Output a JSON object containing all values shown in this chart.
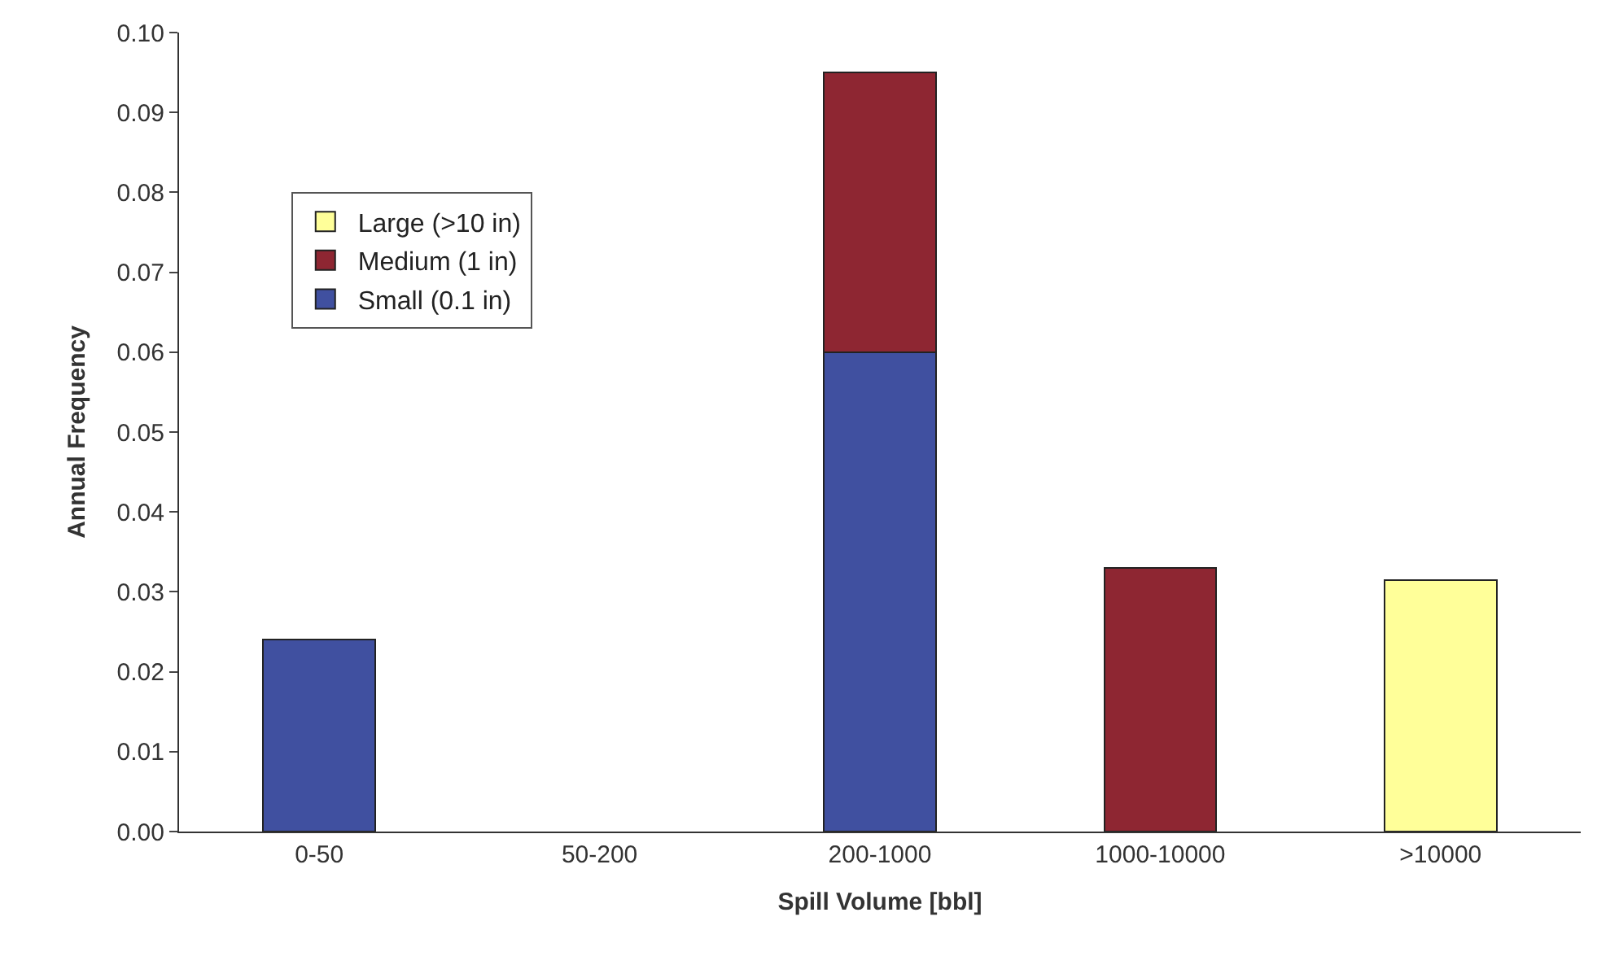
{
  "chart_data": {
    "type": "bar",
    "stacked": true,
    "xlabel": "Spill Volume [bbl]",
    "ylabel": "Annual Frequency",
    "categories": [
      "0-50",
      "50-200",
      "200-1000",
      "1000-10000",
      ">10000"
    ],
    "series": [
      {
        "name": "Small (0.1 in)",
        "color": "#4050a0",
        "values": [
          0.024,
          null,
          0.06,
          null,
          null
        ]
      },
      {
        "name": "Medium (1 in)",
        "color": "#8e2632",
        "values": [
          null,
          null,
          0.035,
          0.033,
          null
        ]
      },
      {
        "name": "Large (>10 in)",
        "color": "#ffff99",
        "values": [
          null,
          null,
          null,
          null,
          0.0315
        ]
      }
    ],
    "ylim": [
      0,
      0.1
    ],
    "yticks": [
      {
        "value": 0,
        "label": "0.00"
      },
      {
        "value": 0.01,
        "label": "0.01"
      },
      {
        "value": 0.02,
        "label": "0.02"
      },
      {
        "value": 0.03,
        "label": "0.03"
      },
      {
        "value": 0.04,
        "label": "0.04"
      },
      {
        "value": 0.05,
        "label": "0.05"
      },
      {
        "value": 0.06,
        "label": "0.06"
      },
      {
        "value": 0.07,
        "label": "0.07"
      },
      {
        "value": 0.08,
        "label": "0.08"
      },
      {
        "value": 0.09,
        "label": "0.09"
      },
      {
        "value": 0.1,
        "label": "0.10"
      }
    ],
    "legend": "top left"
  }
}
